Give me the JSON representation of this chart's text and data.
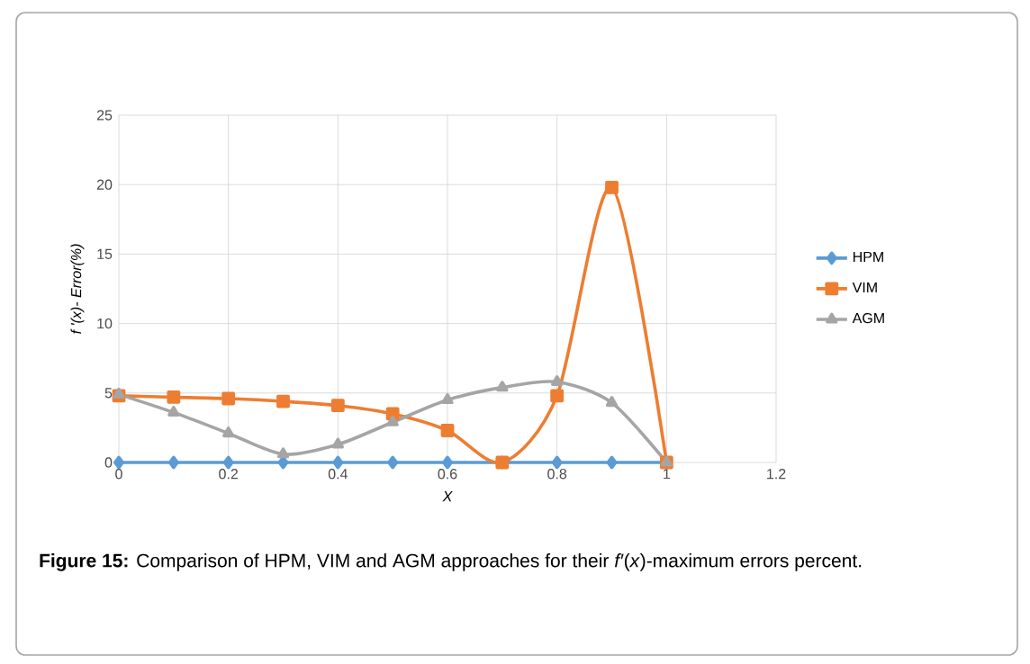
{
  "chart_data": {
    "type": "line",
    "xlabel": "X",
    "ylabel": "f '(x)- Error(%)",
    "x": [
      0,
      0.1,
      0.2,
      0.3,
      0.4,
      0.5,
      0.6,
      0.7,
      0.8,
      0.9,
      1
    ],
    "series": [
      {
        "name": "HPM",
        "color": "#5b9bd5",
        "marker": "diamond",
        "values": [
          0,
          0,
          0,
          0,
          0,
          0,
          0,
          0,
          0,
          0,
          0
        ]
      },
      {
        "name": "VIM",
        "color": "#ed7d31",
        "marker": "square",
        "values": [
          4.8,
          4.7,
          4.6,
          4.4,
          4.1,
          3.5,
          2.3,
          0,
          4.8,
          19.8,
          0
        ]
      },
      {
        "name": "AGM",
        "color": "#a5a5a5",
        "marker": "triangle",
        "values": [
          4.9,
          3.6,
          2.1,
          0.6,
          1.3,
          2.9,
          4.5,
          5.4,
          5.8,
          4.3,
          0
        ]
      }
    ],
    "xlim": [
      0,
      1.2
    ],
    "xticks": [
      0,
      0.2,
      0.4,
      0.6,
      0.8,
      1,
      1.2
    ],
    "ylim": [
      0,
      25
    ],
    "yticks": [
      0,
      5,
      10,
      15,
      20,
      25
    ],
    "grid": true,
    "legend": "right",
    "annotations": [
      "**Figure 15:** Comparison of HPM, VIM and AGM approaches for their *f′*(*x*)-maximum errors percent."
    ]
  }
}
